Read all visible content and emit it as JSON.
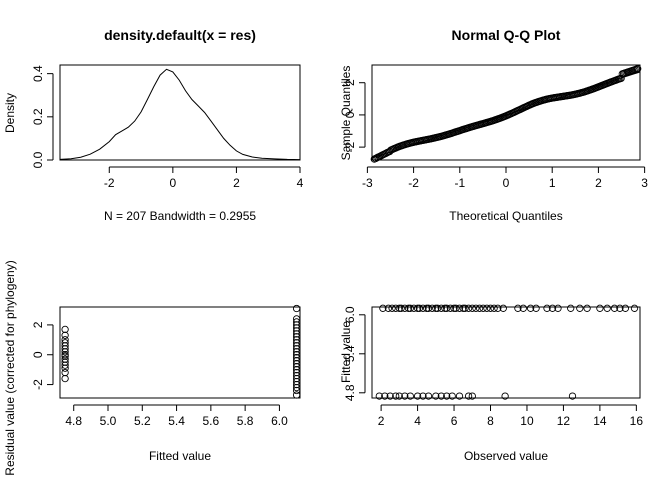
{
  "chart_data": [
    {
      "id": "density",
      "type": "line",
      "title": "density.default(x = res)",
      "xlabel": "N = 207   Bandwidth = 0.2955",
      "ylabel": "Density",
      "xlim": [
        -3.55,
        4.0
      ],
      "ylim": [
        0.0,
        0.44
      ],
      "xticks": [
        -2,
        0,
        2,
        4
      ],
      "xtick_labels": [
        "-2",
        "0",
        "2",
        "4"
      ],
      "yticks": [
        0.0,
        0.2,
        0.4
      ],
      "ytick_labels": [
        "0.0",
        "0.2",
        "0.4"
      ],
      "x": [
        -3.55,
        -3.2,
        -2.9,
        -2.6,
        -2.3,
        -2.0,
        -1.8,
        -1.6,
        -1.4,
        -1.2,
        -1.0,
        -0.8,
        -0.6,
        -0.4,
        -0.2,
        0.0,
        0.2,
        0.4,
        0.6,
        0.8,
        1.0,
        1.2,
        1.4,
        1.6,
        1.8,
        2.0,
        2.2,
        2.5,
        2.8,
        3.2,
        3.6,
        4.0
      ],
      "y": [
        0.003,
        0.006,
        0.013,
        0.027,
        0.05,
        0.085,
        0.117,
        0.135,
        0.152,
        0.18,
        0.223,
        0.28,
        0.34,
        0.393,
        0.42,
        0.408,
        0.37,
        0.32,
        0.28,
        0.25,
        0.22,
        0.18,
        0.14,
        0.1,
        0.068,
        0.042,
        0.026,
        0.014,
        0.008,
        0.005,
        0.003,
        0.002
      ]
    },
    {
      "id": "qq",
      "type": "scatter",
      "title": "Normal Q-Q Plot",
      "xlabel": "Theoretical Quantiles",
      "ylabel": "Sample Quantiles",
      "xlim": [
        -2.9,
        2.9
      ],
      "ylim": [
        -2.8,
        3.1
      ],
      "xticks": [
        -3,
        -2,
        -1,
        0,
        1,
        2,
        3
      ],
      "xtick_labels": [
        "-3",
        "-2",
        "-1",
        "0",
        "1",
        "2",
        "3"
      ],
      "yticks": [
        -2,
        0,
        2
      ],
      "ytick_labels": [
        "-2",
        "0",
        "2"
      ],
      "reference_line": {
        "intercept": 0.0,
        "slope": 0.92
      },
      "points": {
        "n": 207,
        "x_from": -2.85,
        "x_to": 2.85
      }
    },
    {
      "id": "residual_vs_fitted",
      "type": "scatter",
      "xlabel": "Fitted value",
      "ylabel": "Residual value (corrected for phylogeny)",
      "xlim": [
        4.72,
        6.12
      ],
      "ylim": [
        -2.9,
        3.2
      ],
      "xticks": [
        4.8,
        5.0,
        5.2,
        5.4,
        5.6,
        5.8,
        6.0
      ],
      "xtick_labels": [
        "4.8",
        "5.0",
        "5.2",
        "5.4",
        "5.6",
        "5.8",
        "6.0"
      ],
      "yticks": [
        -2,
        0,
        2
      ],
      "ytick_labels": [
        "-2",
        "0",
        "2"
      ],
      "groups": [
        {
          "x": 4.75,
          "y_values": [
            -1.6,
            -1.2,
            -0.9,
            -0.7,
            -0.5,
            -0.3,
            -0.1,
            0.0,
            0.2,
            0.4,
            0.6,
            0.8,
            1.0,
            1.3,
            1.7
          ]
        },
        {
          "x": 6.1,
          "y_values": [
            -2.7,
            -2.4,
            -2.2,
            -2.0,
            -1.8,
            -1.6,
            -1.4,
            -1.2,
            -1.0,
            -0.8,
            -0.6,
            -0.4,
            -0.2,
            0.0,
            0.2,
            0.4,
            0.6,
            0.8,
            1.0,
            1.2,
            1.4,
            1.6,
            1.8,
            2.0,
            2.2,
            2.4,
            3.1
          ]
        }
      ]
    },
    {
      "id": "fitted_vs_observed",
      "type": "scatter",
      "xlabel": "Observed value",
      "ylabel": "Fitted value",
      "xlim": [
        1.5,
        16.2
      ],
      "ylim": [
        4.72,
        6.12
      ],
      "xticks": [
        2,
        4,
        6,
        8,
        10,
        12,
        14,
        16
      ],
      "xtick_labels": [
        "2",
        "4",
        "6",
        "8",
        "10",
        "12",
        "14",
        "16"
      ],
      "yticks": [
        4.8,
        5.4,
        6.0
      ],
      "ytick_labels": [
        "4.8",
        "5.4",
        "6.0"
      ],
      "groups": [
        {
          "y": 6.1,
          "x_values": [
            2.1,
            2.4,
            2.6,
            2.8,
            3.0,
            3.1,
            3.3,
            3.5,
            3.6,
            3.8,
            4.0,
            4.1,
            4.3,
            4.5,
            4.6,
            4.8,
            5.0,
            5.1,
            5.3,
            5.5,
            5.6,
            5.8,
            6.0,
            6.1,
            6.3,
            6.5,
            6.6,
            6.8,
            7.0,
            7.2,
            7.4,
            7.6,
            7.8,
            8.0,
            8.2,
            8.4,
            8.7,
            9.5,
            9.8,
            10.2,
            10.5,
            11.1,
            11.4,
            11.7,
            12.4,
            12.9,
            13.3,
            14.0,
            14.4,
            14.8,
            15.1,
            15.4,
            15.9
          ]
        },
        {
          "y": 4.75,
          "x_values": [
            1.9,
            2.2,
            2.5,
            2.8,
            3.0,
            3.3,
            3.6,
            4.0,
            4.3,
            4.6,
            5.0,
            5.3,
            5.6,
            5.9,
            6.3,
            6.8,
            7.0,
            8.8,
            12.5
          ]
        }
      ]
    }
  ]
}
